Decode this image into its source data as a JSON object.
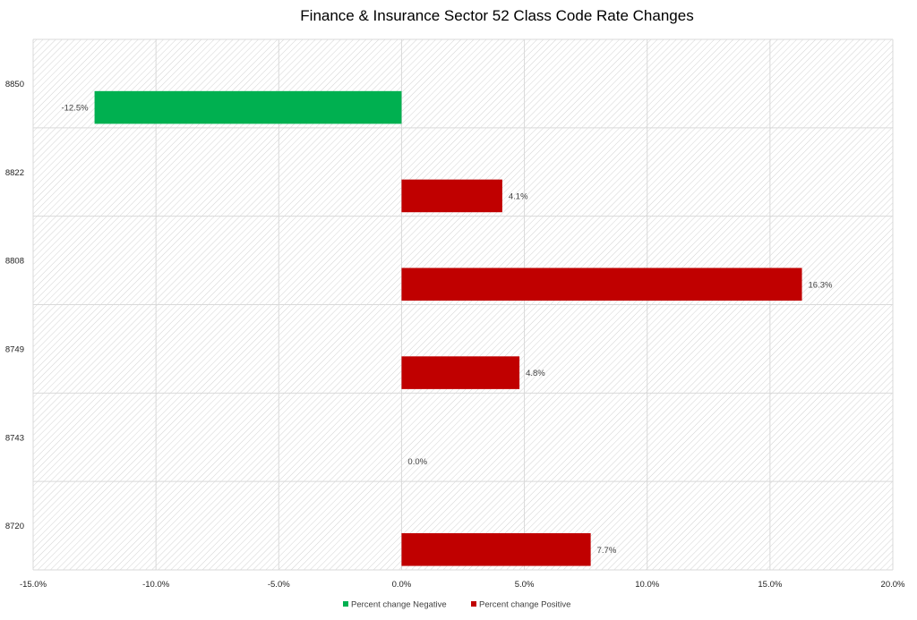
{
  "chart_data": {
    "type": "bar",
    "orientation": "horizontal",
    "title": "Finance & Insurance Sector 52 Class Code Rate Changes",
    "categories": [
      "8850",
      "8822",
      "8808",
      "8749",
      "8743",
      "8720"
    ],
    "series": [
      {
        "name": "Percent change Negative",
        "color": "#00b050",
        "values": [
          -12.5,
          0,
          0,
          0,
          0,
          0
        ]
      },
      {
        "name": "Percent change Positive",
        "color": "#c00000",
        "values": [
          0,
          4.1,
          16.3,
          4.8,
          0,
          7.7
        ]
      }
    ],
    "data_labels": [
      "-12.5%",
      "4.1%",
      "16.3%",
      "4.8%",
      "0.0%",
      "7.7%"
    ],
    "xlim": [
      -15,
      20
    ],
    "x_ticks": [
      -15,
      -10,
      -5,
      0,
      5,
      10,
      15,
      20
    ],
    "x_tick_labels": [
      "-15.0%",
      "-10.0%",
      "-5.0%",
      "0.0%",
      "5.0%",
      "10.0%",
      "15.0%",
      "20.0%"
    ],
    "grid": true,
    "legend_position": "bottom"
  }
}
